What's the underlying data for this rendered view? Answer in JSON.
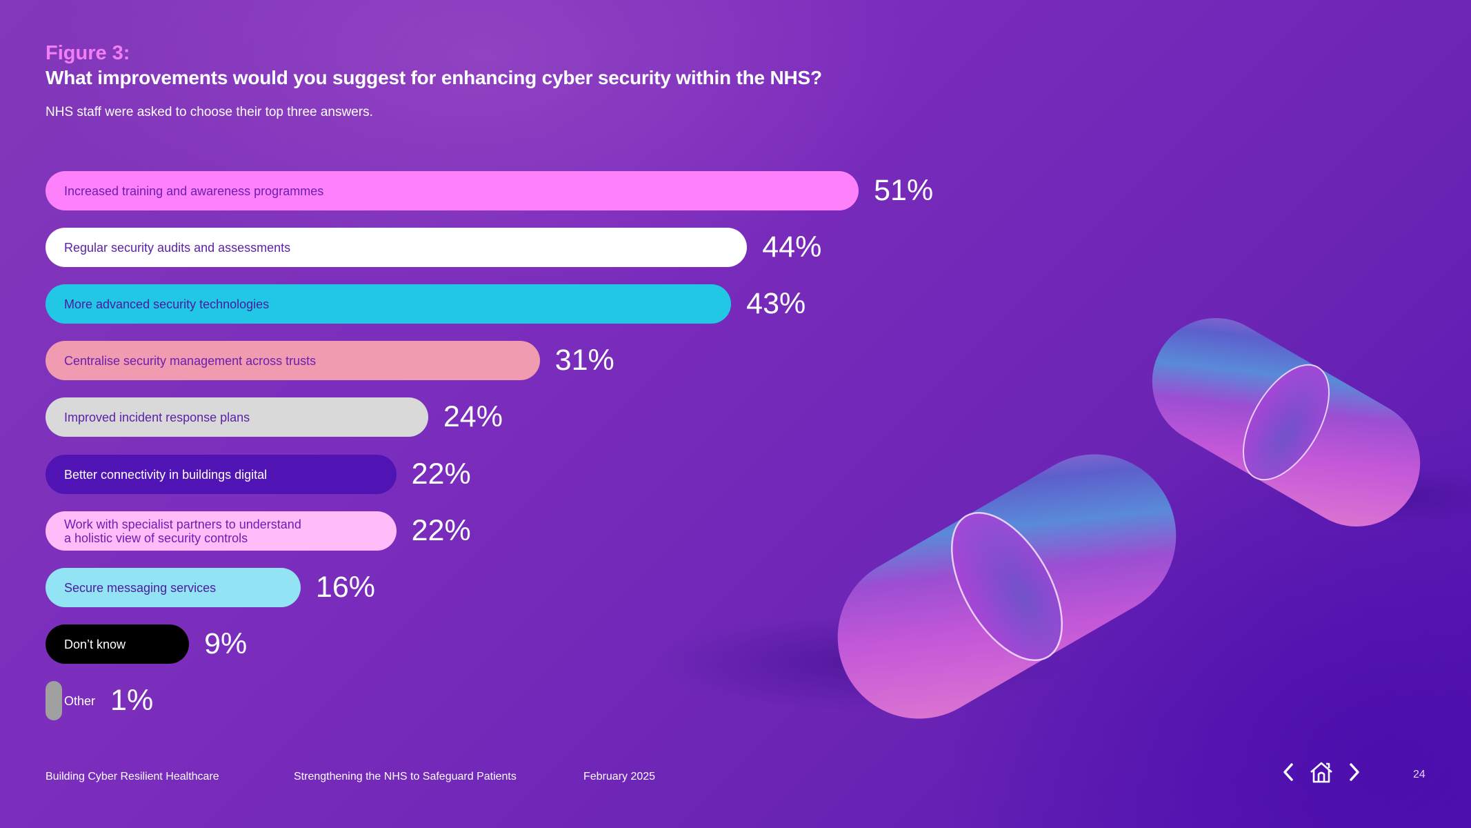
{
  "header": {
    "figure_label": "Figure 3:",
    "title": "What improvements would you suggest for enhancing cyber security within the NHS?",
    "subtitle": "NHS staff were asked to choose their top three answers."
  },
  "chart_data": {
    "type": "bar",
    "orientation": "horizontal",
    "title": "What improvements would you suggest for enhancing cyber security within the NHS?",
    "subtitle": "NHS staff were asked to choose their top three answers.",
    "xlabel": "",
    "ylabel": "",
    "xlim": [
      0,
      100
    ],
    "unit": "%",
    "grid": false,
    "categories": [
      "Increased training and awareness programmes",
      "Regular security audits and assessments",
      "More advanced security technologies",
      "Centralise security management across trusts",
      "Improved incident response plans",
      "Better connectivity in buildings digital",
      "Work with specialist partners to understand\na holistic view of security controls",
      "Secure messaging services",
      "Don’t know",
      "Other"
    ],
    "values": [
      51,
      44,
      43,
      31,
      24,
      22,
      22,
      16,
      9,
      1
    ],
    "value_labels": [
      "51%",
      "44%",
      "43%",
      "31%",
      "24%",
      "22%",
      "22%",
      "16%",
      "9%",
      "1%"
    ],
    "bar_colors": [
      "#ff80fb",
      "#ffffff",
      "#22c7e6",
      "#f09bb0",
      "#d9d9d9",
      "#5014b4",
      "#ffbcf9",
      "#92e3f3",
      "#000000",
      "#a0a0a0"
    ],
    "label_colors": [
      "#6a1fb0",
      "#5a1fa8",
      "#4a1ba0",
      "#6a1fb0",
      "#5a1fa8",
      "#ffffff",
      "#6a1fb0",
      "#4a1ba0",
      "#ffffff",
      "#ffffff"
    ]
  },
  "footer": {
    "items": [
      "Building Cyber Resilient Healthcare",
      "Strengthening the NHS to Safeguard Patients",
      "February 2025"
    ],
    "page_number": "24",
    "nav": {
      "prev_icon": "chevron-left-icon",
      "home_icon": "home-icon",
      "next_icon": "chevron-right-icon"
    }
  }
}
